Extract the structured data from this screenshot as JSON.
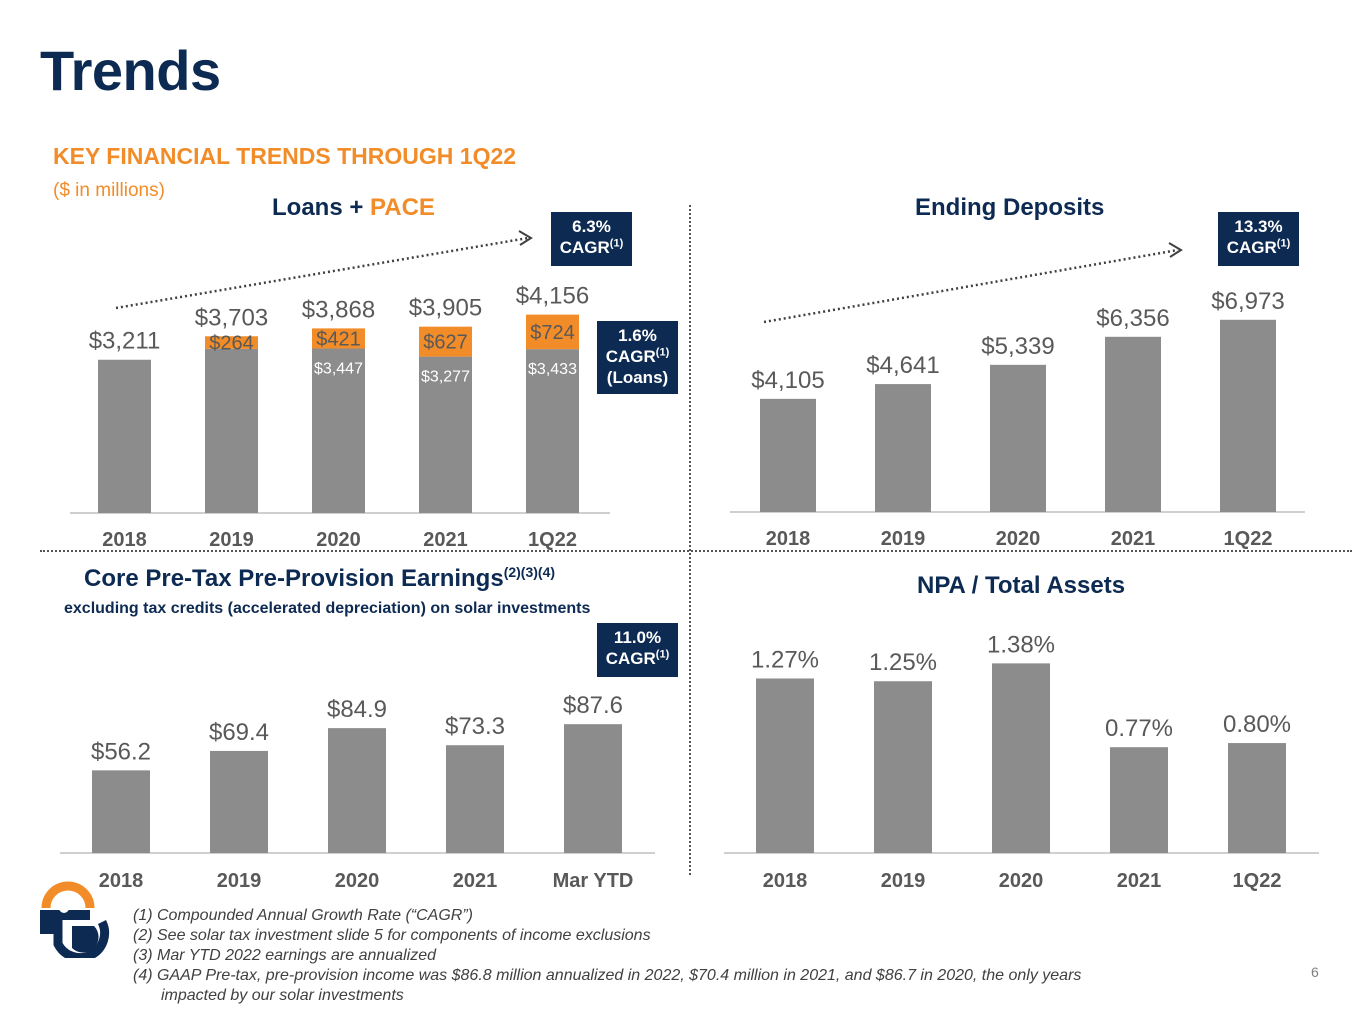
{
  "slide": {
    "title": "Trends",
    "section_heading": "KEY FINANCIAL TRENDS THROUGH 1Q22",
    "units_note": "($ in millions)",
    "page_number": "6"
  },
  "colors": {
    "navy": "#0d2a52",
    "orange": "#f28c28",
    "bar_gray": "#8c8c8c",
    "text_gray": "#595959"
  },
  "panels": {
    "loans": {
      "title_main": "Loans + ",
      "title_accent": "PACE",
      "cagr_total": [
        "6.3%",
        "CAGR",
        "(1)"
      ],
      "cagr_loans": [
        "1.6%",
        "CAGR",
        "(1)",
        "(Loans)"
      ]
    },
    "deposits": {
      "title": "Ending Deposits",
      "cagr": [
        "13.3%",
        "CAGR",
        "(1)"
      ]
    },
    "earnings": {
      "title": "Core Pre-Tax Pre-Provision Earnings",
      "title_sup": "(2)(3)(4)",
      "subtitle": "excluding tax credits (accelerated depreciation) on solar investments",
      "cagr": [
        "11.0%",
        "CAGR",
        "(1)"
      ]
    },
    "npa": {
      "title": "NPA / Total Assets"
    }
  },
  "chart_data": [
    {
      "id": "loans",
      "type": "bar",
      "stacked": true,
      "categories": [
        "2018",
        "2019",
        "2020",
        "2021",
        "1Q22"
      ],
      "series": [
        {
          "values": [
            3211,
            3439,
            3447,
            3277,
            3433
          ],
          "labels": [
            "",
            "",
            "$3,447",
            "$3,277",
            "$3,433"
          ],
          "color": "#8c8c8c"
        },
        {
          "values": [
            0,
            264,
            421,
            627,
            724
          ],
          "labels": [
            "",
            "$264",
            "$421",
            "$627",
            "$724"
          ],
          "color": "#f28c28"
        }
      ],
      "totals": [
        "$3,211",
        "$3,703",
        "$3,868",
        "$3,905",
        "$4,156"
      ],
      "ylim": [
        0,
        4400
      ],
      "trend_arrow": true
    },
    {
      "id": "deposits",
      "type": "bar",
      "categories": [
        "2018",
        "2019",
        "2020",
        "2021",
        "1Q22"
      ],
      "values": [
        4105,
        4641,
        5339,
        6356,
        6973
      ],
      "labels": [
        "$4,105",
        "$4,641",
        "$5,339",
        "$6,356",
        "$6,973"
      ],
      "ylim": [
        0,
        7800
      ],
      "trend_arrow": true
    },
    {
      "id": "earnings",
      "type": "bar",
      "categories": [
        "2018",
        "2019",
        "2020",
        "2021",
        "Mar YTD"
      ],
      "values": [
        56.2,
        69.4,
        84.9,
        73.3,
        87.6
      ],
      "labels": [
        "$56.2",
        "$69.4",
        "$84.9",
        "$73.3",
        "$87.6"
      ],
      "ylim": [
        0,
        102
      ]
    },
    {
      "id": "npa",
      "type": "bar",
      "categories": [
        "2018",
        "2019",
        "2020",
        "2021",
        "1Q22"
      ],
      "values": [
        1.27,
        1.25,
        1.38,
        0.77,
        0.8
      ],
      "labels": [
        "1.27%",
        "1.25%",
        "1.38%",
        "0.77%",
        "0.80%"
      ],
      "ylim": [
        0,
        1.55
      ]
    }
  ],
  "footnotes": [
    "(1) Compounded Annual Growth Rate (“CAGR”)",
    "(2) See solar tax investment slide 5 for components of income exclusions",
    "(3) Mar YTD 2022 earnings are annualized",
    "(4) GAAP Pre-tax, pre-provision income was $86.8 million annualized in 2022, $70.4 million in 2021, and $86.7 in 2020, the only years",
    "impacted by our solar investments"
  ]
}
